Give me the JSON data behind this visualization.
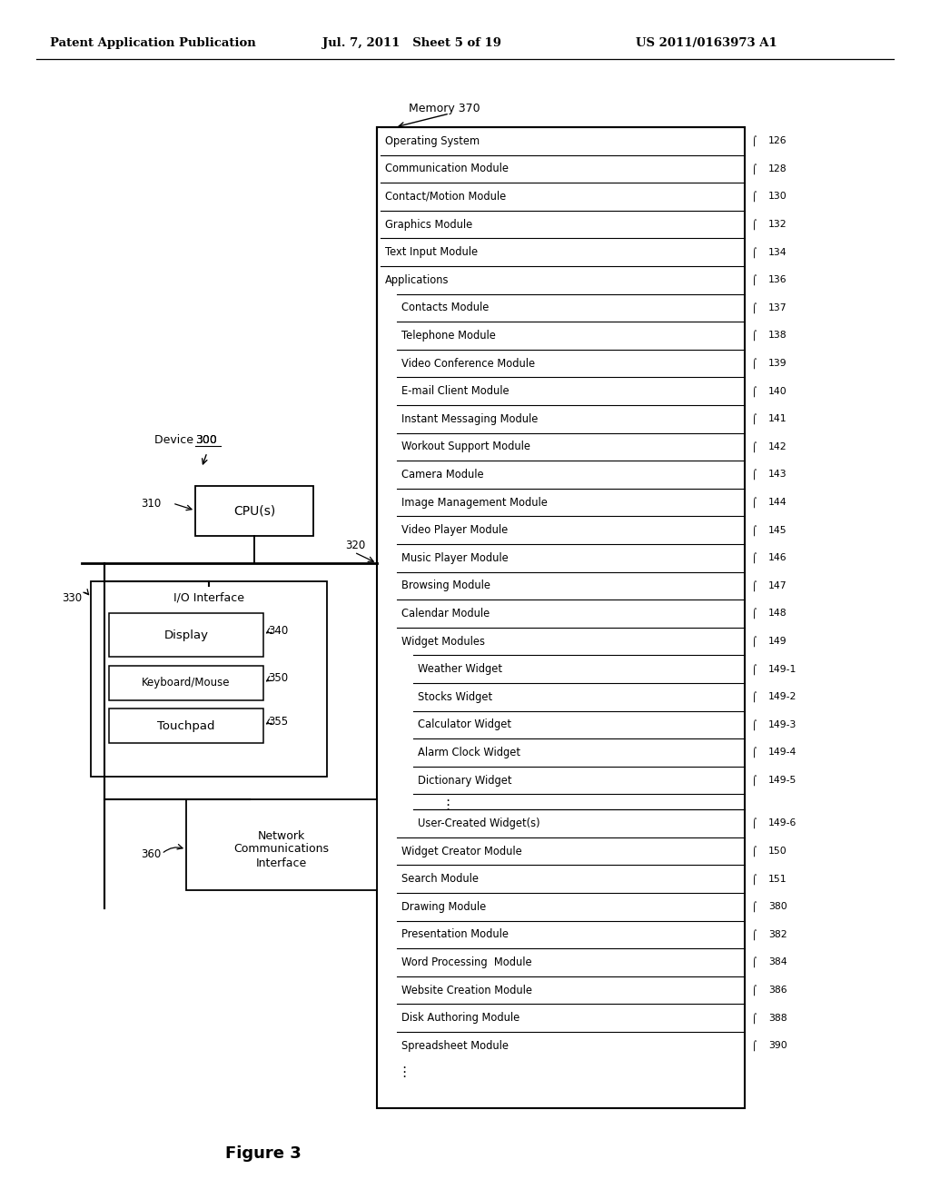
{
  "header_left": "Patent Application Publication",
  "header_mid": "Jul. 7, 2011   Sheet 5 of 19",
  "header_right": "US 2011/0163973 A1",
  "figure_label": "Figure 3",
  "memory_label": "Memory 370",
  "device_label": "Device ",
  "device_num": "300",
  "memory_items": [
    {
      "label": "Operating System",
      "ref": "126",
      "indent": 0
    },
    {
      "label": "Communication Module",
      "ref": "128",
      "indent": 0
    },
    {
      "label": "Contact/Motion Module",
      "ref": "130",
      "indent": 0
    },
    {
      "label": "Graphics Module",
      "ref": "132",
      "indent": 0
    },
    {
      "label": "Text Input Module",
      "ref": "134",
      "indent": 0
    },
    {
      "label": "Applications",
      "ref": "136",
      "indent": 0,
      "header_row": true
    },
    {
      "label": "Contacts Module",
      "ref": "137",
      "indent": 1
    },
    {
      "label": "Telephone Module",
      "ref": "138",
      "indent": 1
    },
    {
      "label": "Video Conference Module",
      "ref": "139",
      "indent": 1
    },
    {
      "label": "E-mail Client Module",
      "ref": "140",
      "indent": 1
    },
    {
      "label": "Instant Messaging Module",
      "ref": "141",
      "indent": 1
    },
    {
      "label": "Workout Support Module",
      "ref": "142",
      "indent": 1
    },
    {
      "label": "Camera Module",
      "ref": "143",
      "indent": 1
    },
    {
      "label": "Image Management Module",
      "ref": "144",
      "indent": 1
    },
    {
      "label": "Video Player Module",
      "ref": "145",
      "indent": 1
    },
    {
      "label": "Music Player Module",
      "ref": "146",
      "indent": 1
    },
    {
      "label": "Browsing Module",
      "ref": "147",
      "indent": 1
    },
    {
      "label": "Calendar Module",
      "ref": "148",
      "indent": 1
    },
    {
      "label": "Widget Modules",
      "ref": "149",
      "indent": 1,
      "header_row": true
    },
    {
      "label": "Weather Widget",
      "ref": "149-1",
      "indent": 2
    },
    {
      "label": "Stocks Widget",
      "ref": "149-2",
      "indent": 2
    },
    {
      "label": "Calculator Widget",
      "ref": "149-3",
      "indent": 2
    },
    {
      "label": "Alarm Clock Widget",
      "ref": "149-4",
      "indent": 2
    },
    {
      "label": "Dictionary Widget",
      "ref": "149-5",
      "indent": 2,
      "dots_after": true
    },
    {
      "label": "User-Created Widget(s)",
      "ref": "149-6",
      "indent": 2
    },
    {
      "label": "Widget Creator Module",
      "ref": "150",
      "indent": 1
    },
    {
      "label": "Search Module",
      "ref": "151",
      "indent": 1
    },
    {
      "label": "Drawing Module",
      "ref": "380",
      "indent": 1
    },
    {
      "label": "Presentation Module",
      "ref": "382",
      "indent": 1
    },
    {
      "label": "Word Processing  Module",
      "ref": "384",
      "indent": 1
    },
    {
      "label": "Website Creation Module",
      "ref": "386",
      "indent": 1
    },
    {
      "label": "Disk Authoring Module",
      "ref": "388",
      "indent": 1
    },
    {
      "label": "Spreadsheet Module",
      "ref": "390",
      "indent": 1
    }
  ]
}
